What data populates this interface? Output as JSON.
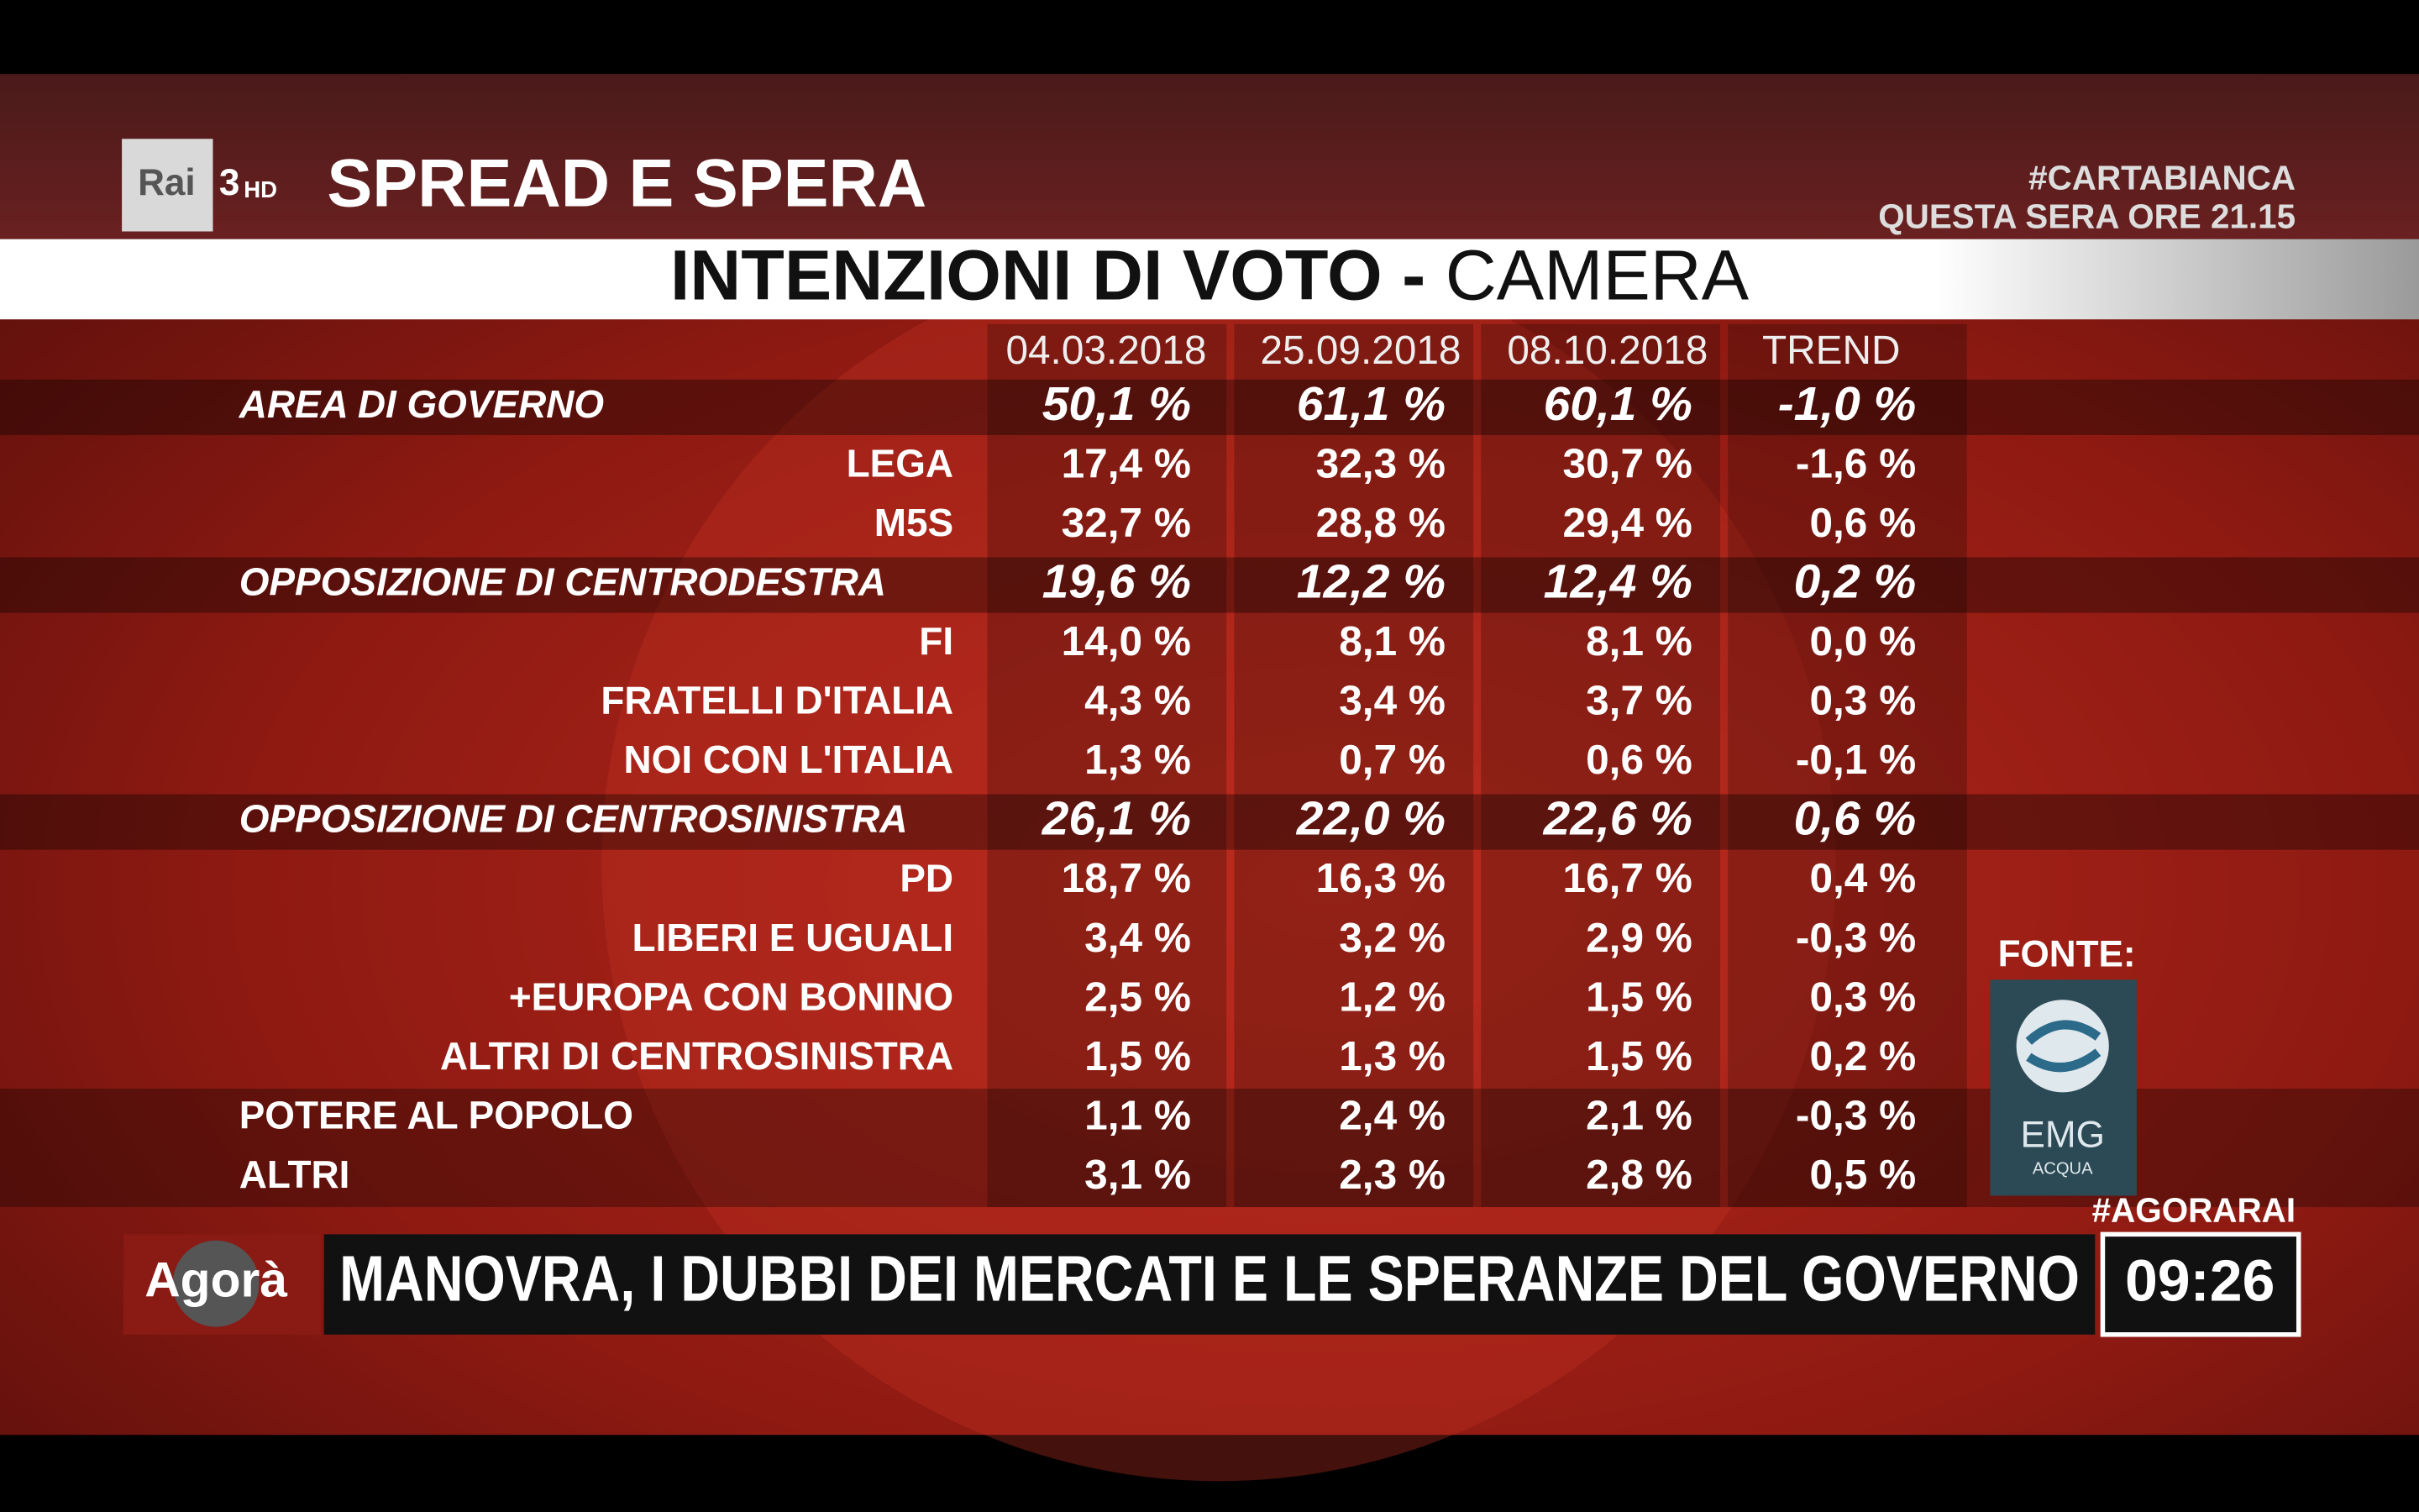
{
  "header": {
    "logo": "Rai",
    "channel": "3",
    "channel_suffix": "HD",
    "program": "SPREAD E SPERA",
    "promo_tag": "#CARTABIANCA",
    "promo_time": "QUESTA SERA ORE 21.15"
  },
  "table": {
    "title_bold": "INTENZIONI DI VOTO -",
    "title_light": "CAMERA",
    "columns": [
      "04.03.2018",
      "25.09.2018",
      "08.10.2018",
      "TREND"
    ],
    "groups": [
      {
        "label": "AREA DI GOVERNO",
        "values": [
          "50,1 %",
          "61,1 %",
          "60,1 %",
          "-1,0 %"
        ],
        "members": [
          {
            "label": "LEGA",
            "values": [
              "17,4 %",
              "32,3 %",
              "30,7 %",
              "-1,6 %"
            ]
          },
          {
            "label": "M5S",
            "values": [
              "32,7 %",
              "28,8 %",
              "29,4 %",
              "0,6 %"
            ]
          }
        ]
      },
      {
        "label": "OPPOSIZIONE DI CENTRODESTRA",
        "values": [
          "19,6 %",
          "12,2 %",
          "12,4 %",
          "0,2 %"
        ],
        "members": [
          {
            "label": "FI",
            "values": [
              "14,0 %",
              "8,1 %",
              "8,1 %",
              "0,0 %"
            ]
          },
          {
            "label": "FRATELLI D'ITALIA",
            "values": [
              "4,3 %",
              "3,4 %",
              "3,7 %",
              "0,3 %"
            ]
          },
          {
            "label": "NOI CON L'ITALIA",
            "values": [
              "1,3 %",
              "0,7 %",
              "0,6 %",
              "-0,1 %"
            ]
          }
        ]
      },
      {
        "label": "OPPOSIZIONE DI CENTROSINISTRA",
        "values": [
          "26,1 %",
          "22,0 %",
          "22,6 %",
          "0,6 %"
        ],
        "members": [
          {
            "label": "PD",
            "values": [
              "18,7 %",
              "16,3 %",
              "16,7 %",
              "0,4 %"
            ]
          },
          {
            "label": "LIBERI E UGUALI",
            "values": [
              "3,4 %",
              "3,2 %",
              "2,9 %",
              "-0,3 %"
            ]
          },
          {
            "label": "+EUROPA CON BONINO",
            "values": [
              "2,5 %",
              "1,2 %",
              "1,5 %",
              "0,3 %"
            ]
          },
          {
            "label": "ALTRI DI CENTROSINISTRA",
            "values": [
              "1,5 %",
              "1,3 %",
              "1,5 %",
              "0,2 %"
            ]
          }
        ]
      }
    ],
    "others": [
      {
        "label": "POTERE AL POPOLO",
        "values": [
          "1,1 %",
          "2,4 %",
          "2,1 %",
          "-0,3 %"
        ]
      },
      {
        "label": "ALTRI",
        "values": [
          "3,1 %",
          "2,3 %",
          "2,8 %",
          "0,5 %"
        ]
      }
    ]
  },
  "source": {
    "label": "FONTE:",
    "logo": "EMG",
    "logo_sub": "ACQUA"
  },
  "footer": {
    "hashtag": "#AGORARAI",
    "show": "Agorà",
    "headline": "MANOVRA, I DUBBI DEI MERCATI E LE SPERANZE DEL GOVERNO",
    "time": "09:26"
  }
}
